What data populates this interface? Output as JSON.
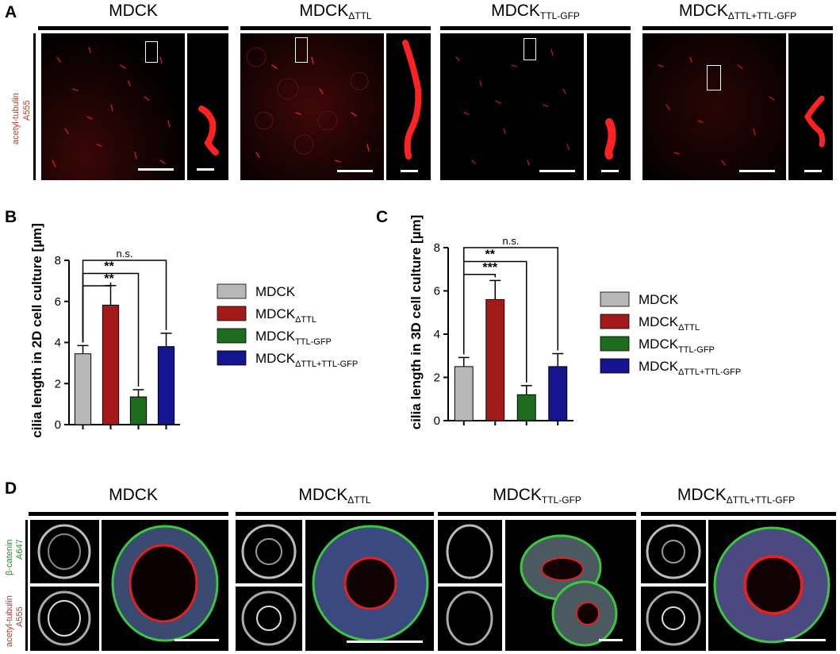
{
  "panel_labels": {
    "a": "A",
    "b": "B",
    "c": "C",
    "d": "D"
  },
  "columns": [
    {
      "base": "MDCK",
      "sub": ""
    },
    {
      "base": "MDCK",
      "sub": "ΔTTL"
    },
    {
      "base": "MDCK",
      "sub": "TTL-GFP"
    },
    {
      "base": "MDCK",
      "sub": "ΔTTL+TTL-GFP"
    }
  ],
  "panel_a": {
    "stain_line1": "acetyl-tubulin",
    "stain_line2": "A555"
  },
  "panel_d": {
    "stain_top_line1": "β-catenin",
    "stain_top_line2": "A647",
    "stain_bottom_line1": "acetyl-tubulin",
    "stain_bottom_line2": "A555"
  },
  "colors": {
    "mdck": "#b7b7b7",
    "dttl": "#a31a1a",
    "ttl_gfp": "#1d6b1d",
    "dttl_ttl_gfp": "#15158f",
    "red_channel": "#ff2a2a"
  },
  "chart_data": [
    {
      "type": "bar",
      "panel": "B",
      "ylabel": "cilia length in 2D cell culture [µm]",
      "categories": [
        "MDCK",
        "MDCKΔTTL",
        "MDCKTTL-GFP",
        "MDCKΔTTL+TTL-GFP"
      ],
      "values": [
        3.45,
        5.82,
        1.35,
        3.8
      ],
      "errors": [
        0.4,
        0.95,
        0.35,
        0.65
      ],
      "ylim": [
        0,
        8
      ],
      "yticks": [
        "0",
        "2",
        "4",
        "6",
        "8"
      ],
      "significance": [
        "**",
        "**",
        "n.s."
      ],
      "legend": [
        {
          "base": "MDCK",
          "sub": ""
        },
        {
          "base": "MDCK",
          "sub": "ΔTTL"
        },
        {
          "base": "MDCK",
          "sub": "TTL-GFP"
        },
        {
          "base": "MDCK",
          "sub": "ΔTTL+TTL-GFP"
        }
      ],
      "legend_placement": "right",
      "grid": false
    },
    {
      "type": "bar",
      "panel": "C",
      "ylabel": "cilia length in 3D cell culture [µm]",
      "categories": [
        "MDCK",
        "MDCKΔTTL",
        "MDCKTTL-GFP",
        "MDCKΔTTL+TTL-GFP"
      ],
      "values": [
        2.5,
        5.6,
        1.2,
        2.5
      ],
      "errors": [
        0.42,
        0.88,
        0.42,
        0.6
      ],
      "ylim": [
        0,
        8
      ],
      "yticks": [
        "0",
        "2",
        "4",
        "6",
        "8"
      ],
      "significance": [
        "***",
        "**",
        "n.s."
      ],
      "legend": [
        {
          "base": "MDCK",
          "sub": ""
        },
        {
          "base": "MDCK",
          "sub": "ΔTTL"
        },
        {
          "base": "MDCK",
          "sub": "TTL-GFP"
        },
        {
          "base": "MDCK",
          "sub": "ΔTTL+TTL-GFP"
        }
      ],
      "legend_placement": "right",
      "grid": false
    }
  ]
}
